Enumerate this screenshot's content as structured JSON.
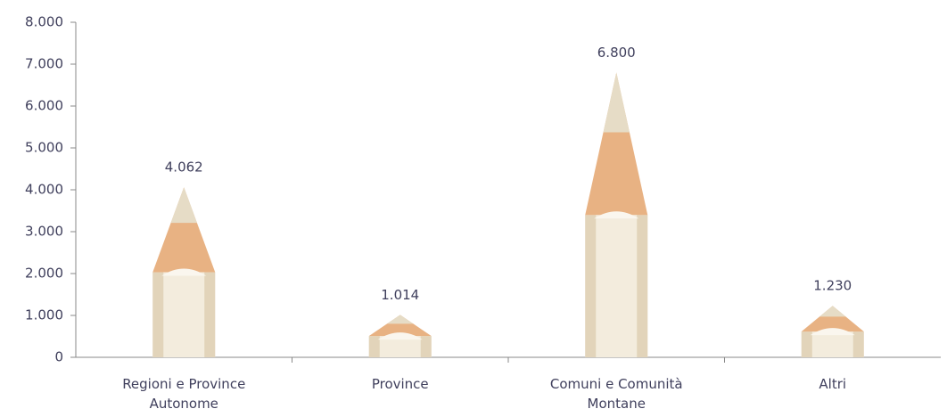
{
  "chart_data": {
    "type": "pencil-bar",
    "categories": [
      "Regioni e Province Autonome",
      "Province",
      "Comuni e Comunità Montane",
      "Altri"
    ],
    "values": [
      4062,
      1014,
      6800,
      1230
    ],
    "value_labels": [
      "4.062",
      "1.014",
      "6.800",
      "1.230"
    ],
    "ylim": [
      0,
      8000
    ],
    "yticks": [
      0,
      {
        "value": 1000,
        "label": "1.000"
      },
      {
        "value": 2000,
        "label": "2.000"
      },
      {
        "value": 3000,
        "label": "3.000"
      },
      {
        "value": 4000,
        "label": "4.000"
      },
      {
        "value": 5000,
        "label": "5.000"
      },
      {
        "value": 6000,
        "label": "6.000"
      },
      {
        "value": 7000,
        "label": "7.000"
      },
      {
        "value": 8000,
        "label": "8.000"
      }
    ],
    "color": "#e8b283"
  }
}
